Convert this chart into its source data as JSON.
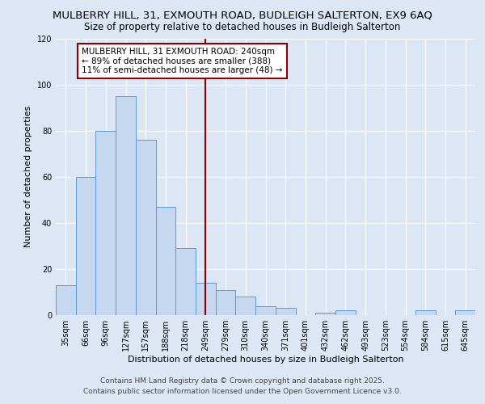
{
  "title": "MULBERRY HILL, 31, EXMOUTH ROAD, BUDLEIGH SALTERTON, EX9 6AQ",
  "subtitle": "Size of property relative to detached houses in Budleigh Salterton",
  "xlabel": "Distribution of detached houses by size in Budleigh Salterton",
  "ylabel": "Number of detached properties",
  "categories": [
    "35sqm",
    "66sqm",
    "96sqm",
    "127sqm",
    "157sqm",
    "188sqm",
    "218sqm",
    "249sqm",
    "279sqm",
    "310sqm",
    "340sqm",
    "371sqm",
    "401sqm",
    "432sqm",
    "462sqm",
    "493sqm",
    "523sqm",
    "554sqm",
    "584sqm",
    "615sqm",
    "645sqm"
  ],
  "values": [
    13,
    60,
    80,
    95,
    76,
    47,
    29,
    14,
    11,
    8,
    4,
    3,
    0,
    1,
    2,
    0,
    0,
    0,
    2,
    0,
    2
  ],
  "bar_color": "#c5d8f0",
  "bar_edge_color": "#5b9bd5",
  "vline_color": "#8b0000",
  "vline_x": 7,
  "annotation_text": "MULBERRY HILL, 31 EXMOUTH ROAD: 240sqm\n← 89% of detached houses are smaller (388)\n11% of semi-detached houses are larger (48) →",
  "annotation_box_color": "#ffffff",
  "annotation_box_edge": "#8b0000",
  "ylim": [
    0,
    120
  ],
  "yticks": [
    0,
    20,
    40,
    60,
    80,
    100,
    120
  ],
  "footer1": "Contains HM Land Registry data © Crown copyright and database right 2025.",
  "footer2": "Contains public sector information licensed under the Open Government Licence v3.0.",
  "background_color": "#dce6f5",
  "plot_background": "#dce6f5",
  "grid_color": "#ffffff",
  "title_fontsize": 9.5,
  "subtitle_fontsize": 8.5,
  "axis_label_fontsize": 8,
  "tick_fontsize": 7,
  "footer_fontsize": 6.5,
  "annot_fontsize": 7.5
}
